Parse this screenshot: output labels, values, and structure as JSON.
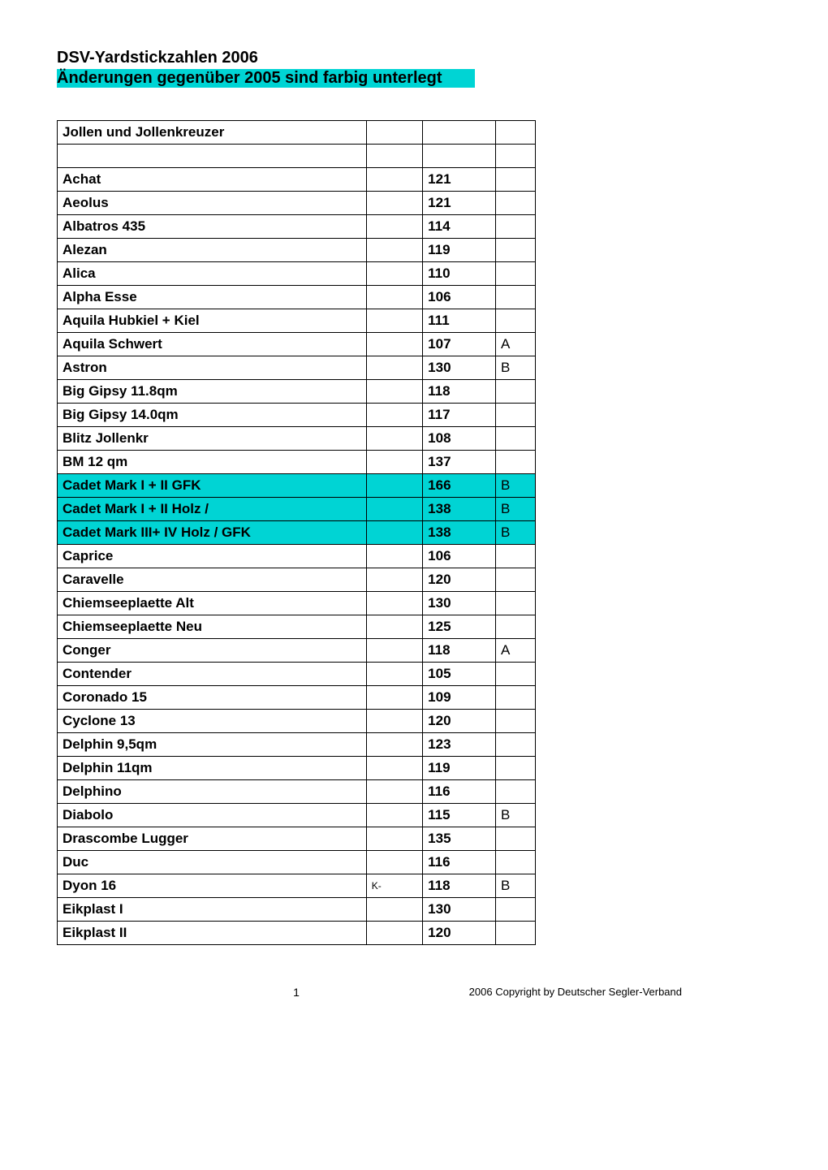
{
  "header": {
    "title": "DSV-Yardstickzahlen 2006",
    "subtitle": "Änderungen gegenüber 2005 sind farbig unterlegt",
    "subtitle_bg": "#00d4d4"
  },
  "table": {
    "section_header": "Jollen und Jollenkreuzer",
    "highlight_color": "#00d4d4",
    "border_color": "#000000",
    "rows": [
      {
        "name": "Achat",
        "note": "",
        "value": "121",
        "flag": "",
        "highlight": false
      },
      {
        "name": "Aeolus",
        "note": "",
        "value": "121",
        "flag": "",
        "highlight": false
      },
      {
        "name": "Albatros 435",
        "note": "",
        "value": "114",
        "flag": "",
        "highlight": false
      },
      {
        "name": "Alezan",
        "note": "",
        "value": "119",
        "flag": "",
        "highlight": false
      },
      {
        "name": "Alica",
        "note": "",
        "value": "110",
        "flag": "",
        "highlight": false
      },
      {
        "name": "Alpha Esse",
        "note": "",
        "value": "106",
        "flag": "",
        "highlight": false
      },
      {
        "name": "Aquila Hubkiel + Kiel",
        "note": "",
        "value": "111",
        "flag": "",
        "highlight": false
      },
      {
        "name": "Aquila Schwert",
        "note": "",
        "value": "107",
        "flag": "A",
        "highlight": false
      },
      {
        "name": "Astron",
        "note": "",
        "value": "130",
        "flag": "B",
        "highlight": false
      },
      {
        "name": "Big Gipsy 11.8qm",
        "note": "",
        "value": "118",
        "flag": "",
        "highlight": false
      },
      {
        "name": "Big Gipsy 14.0qm",
        "note": "",
        "value": "117",
        "flag": "",
        "highlight": false
      },
      {
        "name": "Blitz Jollenkr",
        "note": "",
        "value": "108",
        "flag": "",
        "highlight": false
      },
      {
        "name": "BM 12 qm",
        "note": "",
        "value": "137",
        "flag": "",
        "highlight": false
      },
      {
        "name": "Cadet Mark I + II GFK",
        "note": "",
        "value": "166",
        "flag": "B",
        "highlight": true
      },
      {
        "name": "Cadet Mark I + II Holz /",
        "note": "",
        "value": "138",
        "flag": "B",
        "highlight": true
      },
      {
        "name": "Cadet Mark III+ IV Holz / GFK",
        "note": "",
        "value": "138",
        "flag": "B",
        "highlight": true
      },
      {
        "name": "Caprice",
        "note": "",
        "value": "106",
        "flag": "",
        "highlight": false
      },
      {
        "name": "Caravelle",
        "note": "",
        "value": "120",
        "flag": "",
        "highlight": false
      },
      {
        "name": "Chiemseeplaette  Alt",
        "note": "",
        "value": "130",
        "flag": "",
        "highlight": false
      },
      {
        "name": "Chiemseeplaette  Neu",
        "note": "",
        "value": "125",
        "flag": "",
        "highlight": false
      },
      {
        "name": "Conger",
        "note": "",
        "value": "118",
        "flag": "A",
        "highlight": false
      },
      {
        "name": "Contender",
        "note": "",
        "value": "105",
        "flag": "",
        "highlight": false
      },
      {
        "name": "Coronado 15",
        "note": "",
        "value": "109",
        "flag": "",
        "highlight": false
      },
      {
        "name": "Cyclone 13",
        "note": "",
        "value": "120",
        "flag": "",
        "highlight": false
      },
      {
        "name": "Delphin 9,5qm",
        "note": "",
        "value": "123",
        "flag": "",
        "highlight": false
      },
      {
        "name": "Delphin 11qm",
        "note": "",
        "value": "119",
        "flag": "",
        "highlight": false
      },
      {
        "name": "Delphino",
        "note": "",
        "value": "116",
        "flag": "",
        "highlight": false
      },
      {
        "name": "Diabolo",
        "note": "",
        "value": "115",
        "flag": "B",
        "highlight": false
      },
      {
        "name": "Drascombe Lugger",
        "note": "",
        "value": "135",
        "flag": "",
        "highlight": false
      },
      {
        "name": "Duc",
        "note": "",
        "value": "116",
        "flag": "",
        "highlight": false
      },
      {
        "name": "Dyon 16",
        "note": "K-",
        "value": "118",
        "flag": "B",
        "highlight": false
      },
      {
        "name": "Eikplast I",
        "note": "",
        "value": "130",
        "flag": "",
        "highlight": false
      },
      {
        "name": "Eikplast II",
        "note": "",
        "value": "120",
        "flag": "",
        "highlight": false
      }
    ]
  },
  "footer": {
    "page_number": "1",
    "copyright": "2006 Copyright by Deutscher Segler-Verband"
  }
}
